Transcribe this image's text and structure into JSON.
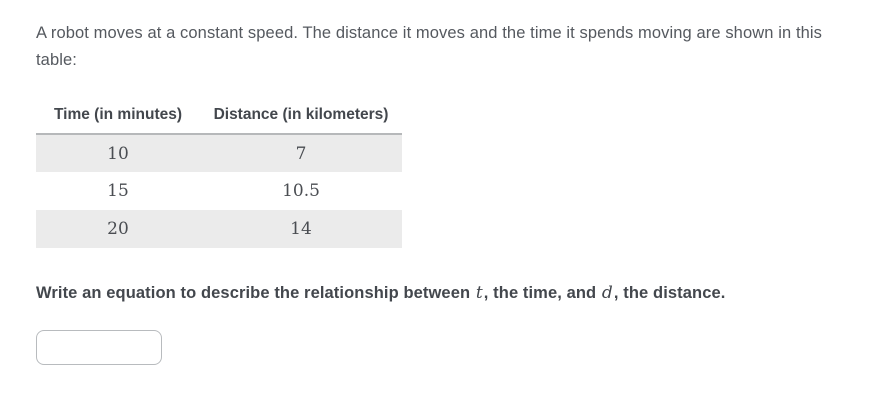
{
  "problem": {
    "intro": "A robot moves at a constant speed. The distance it moves and the time it spends moving are shown in this table:",
    "table": {
      "headers": [
        "Time (in minutes)",
        "Distance (in kilometers)"
      ],
      "rows": [
        [
          "10",
          "7"
        ],
        [
          "15",
          "10.5"
        ],
        [
          "20",
          "14"
        ]
      ]
    },
    "question": {
      "prefix": "Write an equation to describe the relationship between ",
      "var1": "t",
      "mid1": ", the time, and ",
      "var2": "d",
      "suffix": ", the distance."
    },
    "answer_input": {
      "value": "",
      "placeholder": ""
    }
  },
  "colors": {
    "row_alt_background": "#ebebeb",
    "header_border": "#b6b8ba",
    "body_text": "#55595f",
    "bold_text": "#43474d",
    "input_border": "#b8bbbe"
  }
}
